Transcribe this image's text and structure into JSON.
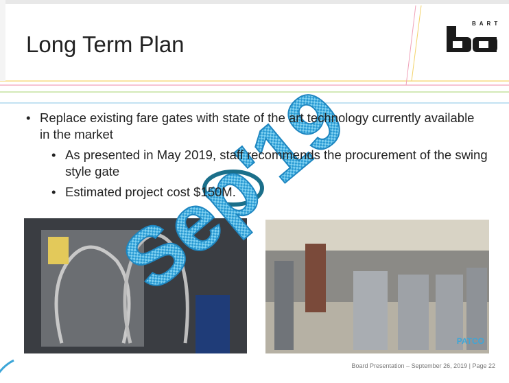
{
  "header": {
    "title": "Long Term Plan",
    "logo": "BART"
  },
  "bullets": [
    {
      "text": "Replace existing fare gates with state of the art technology currently available in the market",
      "children": [
        "As presented in May 2019, staff recommends the procurement of the swing style gate",
        "Estimated project cost $150M."
      ]
    }
  ],
  "photos": [
    {},
    {
      "label": "PATCO"
    }
  ],
  "watermark": "Sep'19",
  "footer": "Board Presentation – September 26, 2019 | Page 22"
}
